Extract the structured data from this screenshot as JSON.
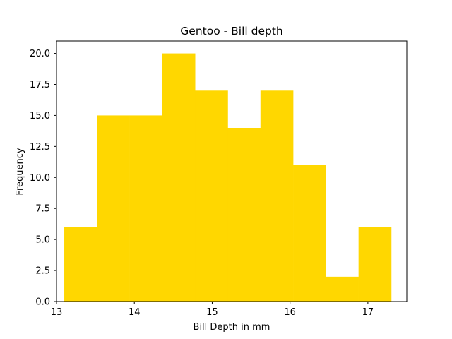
{
  "chart_data": {
    "type": "bar",
    "title": "Gentoo - Bill depth",
    "xlabel": "Bill Depth in mm",
    "ylabel": "Frequency",
    "xlim": [
      13.0,
      17.5
    ],
    "ylim": [
      0,
      21
    ],
    "x_ticks": [
      13,
      14,
      15,
      16,
      17
    ],
    "y_ticks": [
      0.0,
      2.5,
      5.0,
      7.5,
      10.0,
      12.5,
      15.0,
      17.5,
      20.0
    ],
    "x_tick_labels": [
      "13",
      "14",
      "15",
      "16",
      "17"
    ],
    "y_tick_labels": [
      "0.0",
      "2.5",
      "5.0",
      "7.5",
      "10.0",
      "12.5",
      "15.0",
      "17.5",
      "20.0"
    ],
    "bin_edges": [
      13.1,
      13.52,
      13.94,
      14.36,
      14.78,
      15.2,
      15.62,
      16.04,
      16.46,
      16.88,
      17.3
    ],
    "values": [
      6,
      15,
      15,
      20,
      17,
      14,
      17,
      11,
      2,
      6
    ],
    "bar_color": "#FFD700",
    "grid": false,
    "legend": "none"
  }
}
